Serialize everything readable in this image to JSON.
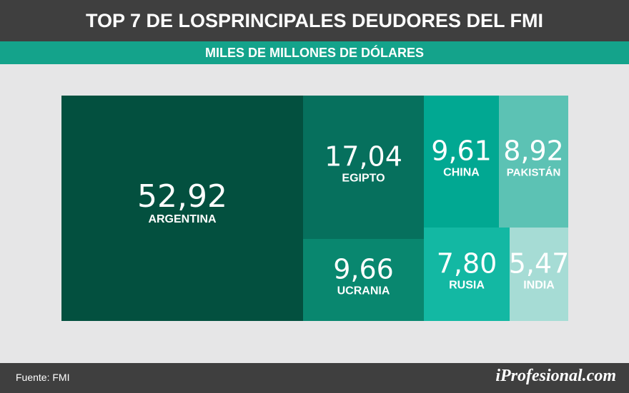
{
  "header": {
    "title": "TOP 7 DE LOSPRINCIPALES DEUDORES DEL FMI",
    "subtitle": "MILES DE MILLONES DE DÓLARES"
  },
  "chart_data": {
    "type": "treemap",
    "title": "TOP 7 DE LOSPRINCIPALES DEUDORES DEL FMI",
    "subtitle": "MILES DE MILLONES DE DÓLARES",
    "categories": [
      "ARGENTINA",
      "EGIPTO",
      "UCRANIA",
      "CHINA",
      "PAKISTÁN",
      "RUSIA",
      "INDIA"
    ],
    "values": [
      52.92,
      17.04,
      9.66,
      9.61,
      8.92,
      7.8,
      5.47
    ],
    "value_labels": [
      "52,92",
      "17,04",
      "9,66",
      "9,61",
      "8,92",
      "7,80",
      "5,47"
    ],
    "colors": [
      "#03503f",
      "#06705d",
      "#09876f",
      "#01a892",
      "#5cc2b4",
      "#13b8a3",
      "#a6dcd5"
    ]
  },
  "footer": {
    "source": "Fuente: FMI",
    "brand": "iProfesional.com"
  }
}
